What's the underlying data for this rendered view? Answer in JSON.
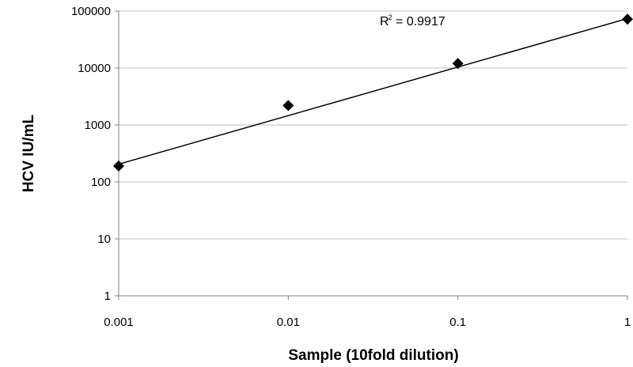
{
  "chart_data": {
    "type": "scatter",
    "xlabel": "Sample (10fold dilution)",
    "ylabel": "HCV IU/mL",
    "x_scale": "log",
    "y_scale": "log",
    "xlim": [
      0.001,
      1
    ],
    "ylim": [
      1,
      100000
    ],
    "x_ticks": [
      "0.001",
      "0.01",
      "0.1",
      "1"
    ],
    "y_ticks": [
      "1",
      "10",
      "100",
      "1000",
      "10000",
      "100000"
    ],
    "grid": "horizontal",
    "series": [
      {
        "marker": "diamond",
        "color": "#000000",
        "points": [
          {
            "x": 0.001,
            "y": 190
          },
          {
            "x": 0.01,
            "y": 2200
          },
          {
            "x": 0.1,
            "y": 12000
          },
          {
            "x": 1,
            "y": 72000
          }
        ]
      }
    ],
    "trendline": {
      "type": "power",
      "from": {
        "x": 0.001,
        "y": 205
      },
      "to": {
        "x": 1,
        "y": 74000
      },
      "r2_label": "R",
      "r2_sup": "2",
      "r2_value": " = 0.9917"
    }
  }
}
